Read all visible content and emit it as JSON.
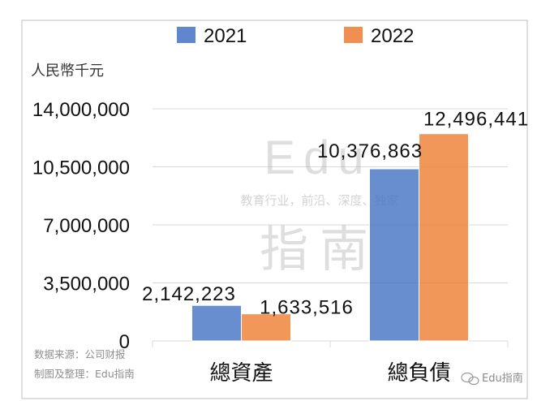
{
  "chart_data": {
    "type": "bar",
    "unit_label": "人民幣千元",
    "categories": [
      "總資產",
      "總負債"
    ],
    "series": [
      {
        "name": "2021",
        "values": [
          2142223,
          10376863
        ],
        "labels": [
          "2,142,223",
          "10,376,863"
        ],
        "color": "#4472C4"
      },
      {
        "name": "2022",
        "values": [
          1633516,
          12496441
        ],
        "labels": [
          "1,633,516",
          "12,496,441"
        ],
        "color": "#ED7D31"
      }
    ],
    "y_ticks": [
      0,
      3500000,
      7000000,
      10500000,
      14000000
    ],
    "y_tick_labels": [
      "0",
      "3,500,000",
      "7,000,000",
      "10,500,000",
      "14,000,000"
    ],
    "ylim": [
      0,
      14000000
    ],
    "grid": true,
    "legend_position": "top"
  },
  "watermark": {
    "brand_latin": "Edu",
    "brand_cn": "指南",
    "tagline": "教育行业，前沿、深度、独家"
  },
  "source_note": [
    "数据来源：公司财报",
    "制图及整理：Edu指南"
  ],
  "wechat_badge": "Edu指南"
}
